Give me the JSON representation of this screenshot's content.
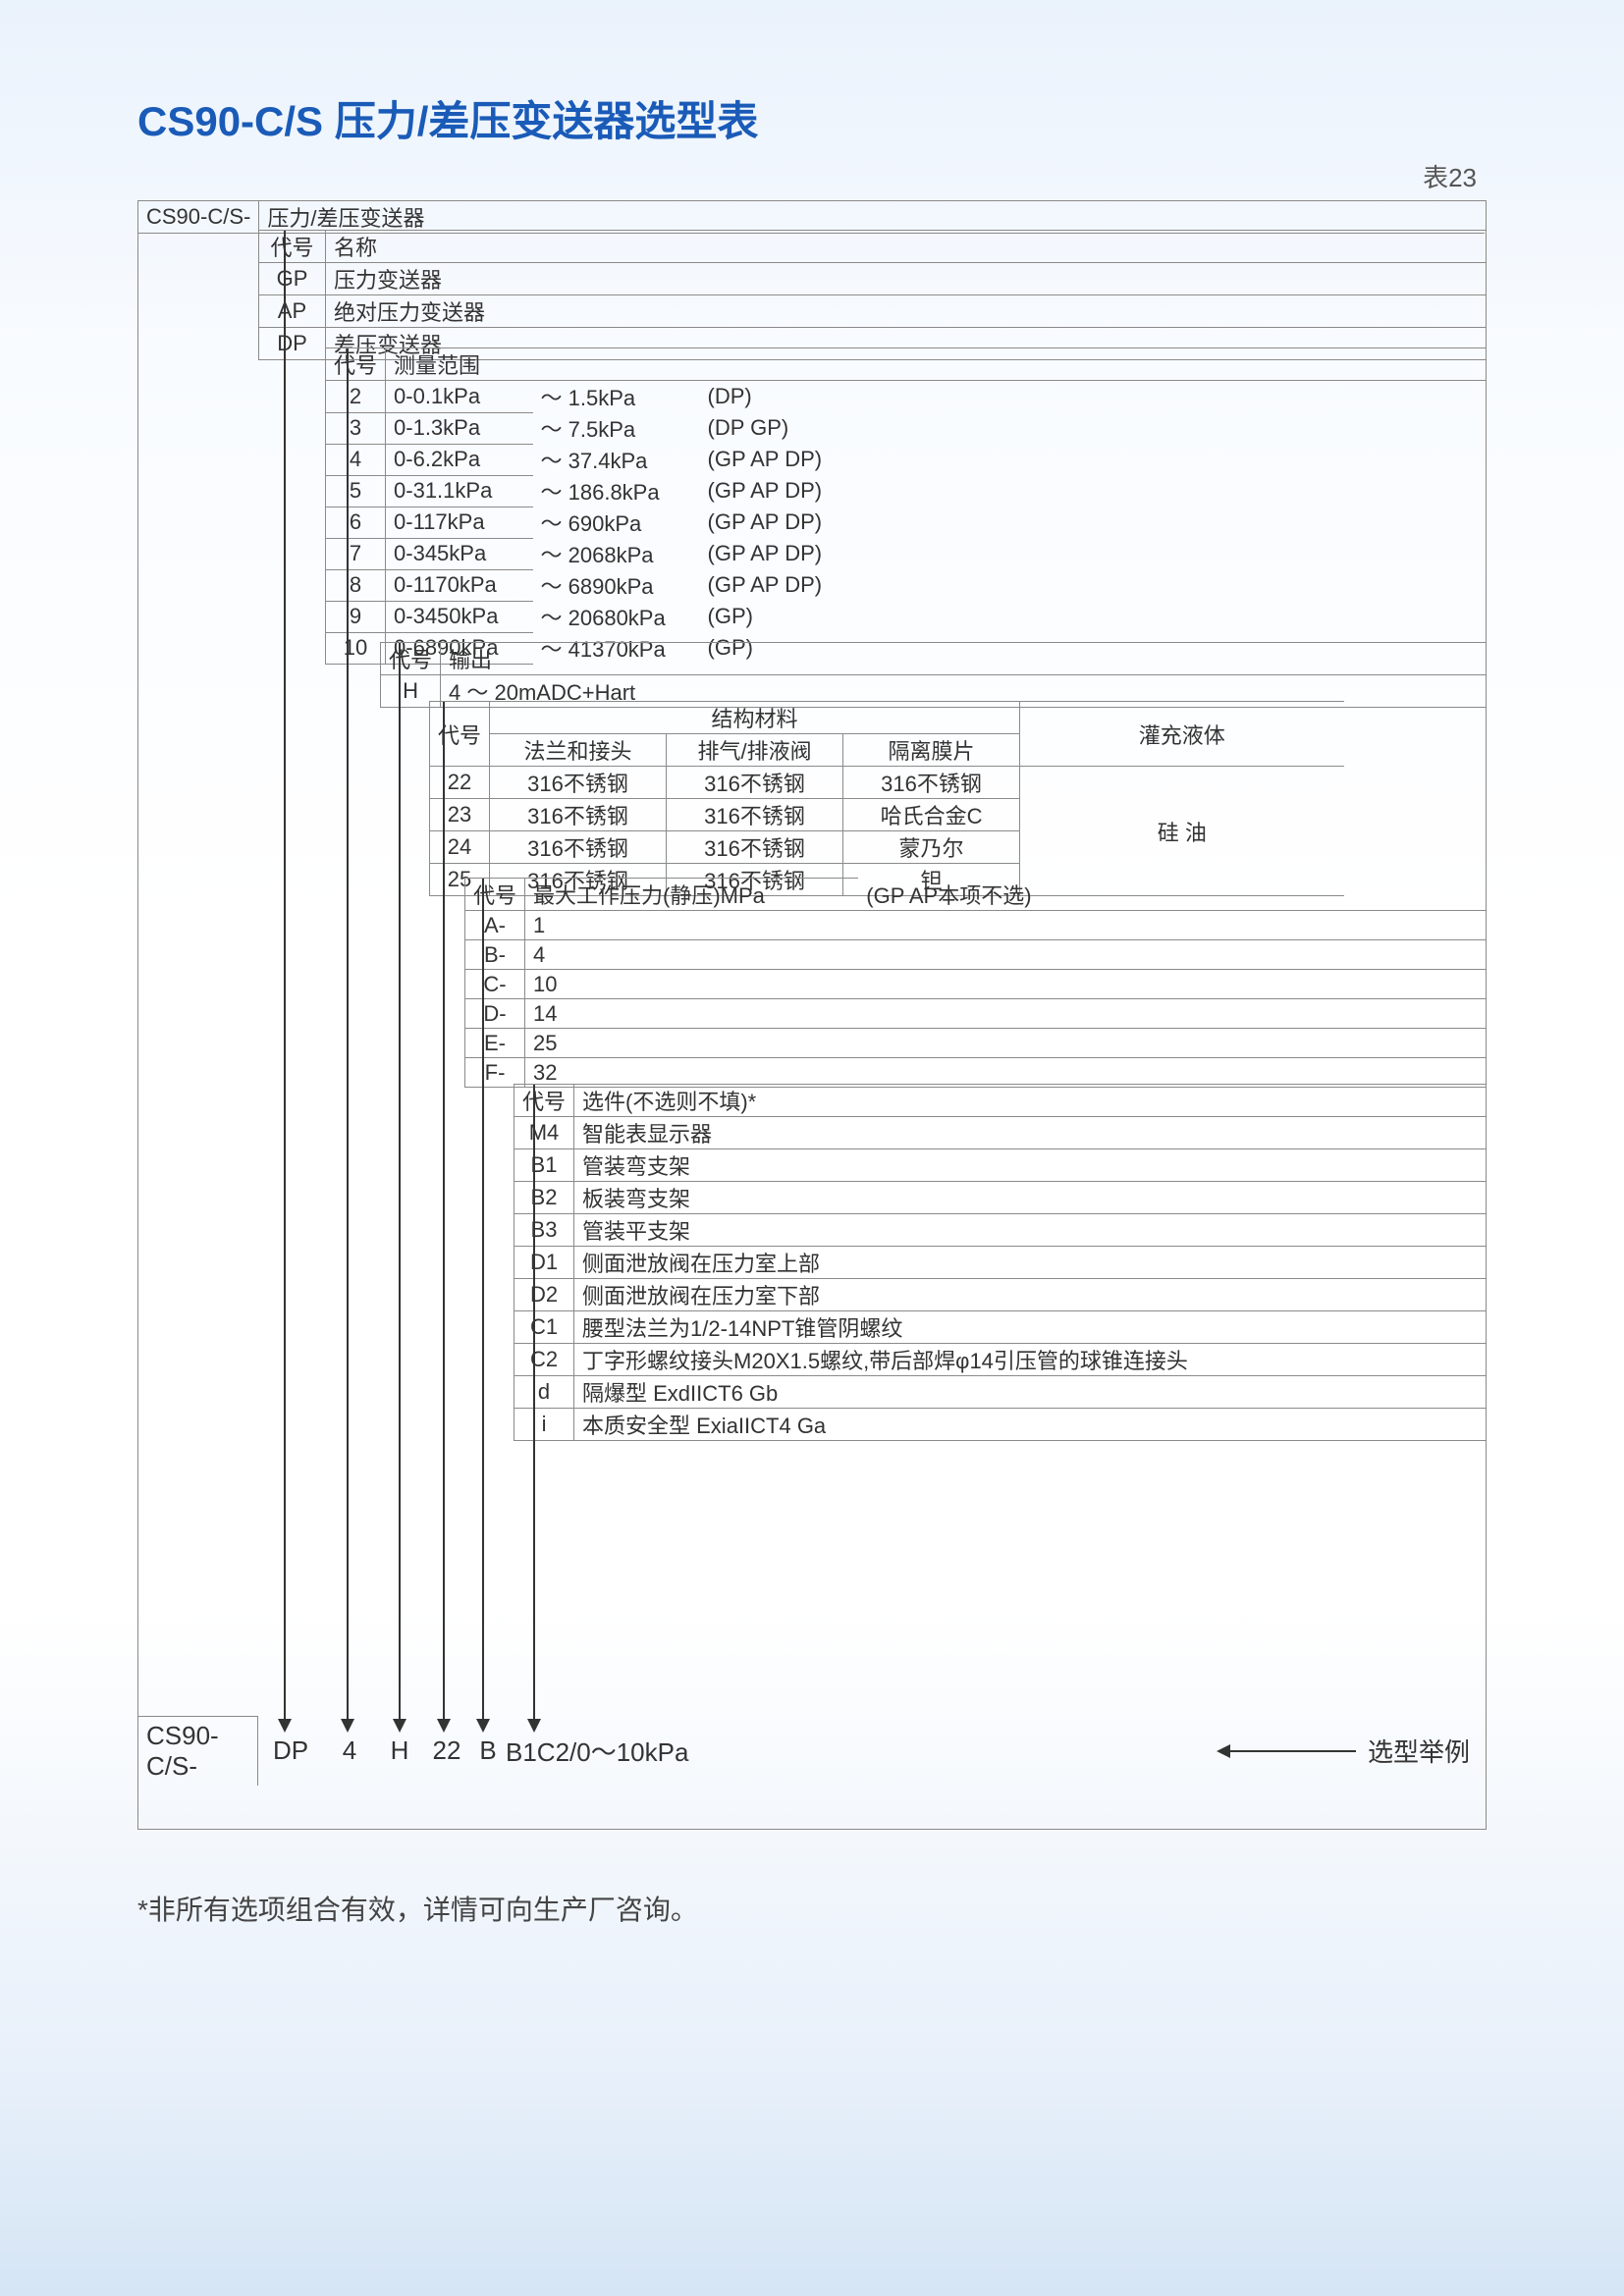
{
  "title": "CS90-C/S 压力/差压变送器选型表",
  "tableLabel": "表23",
  "root": {
    "code": "CS90-C/S-",
    "desc": "压力/差压变送器"
  },
  "typeHeader": {
    "code": "代号",
    "name": "名称"
  },
  "types": [
    {
      "code": "GP",
      "name": "压力变送器"
    },
    {
      "code": "AP",
      "name": "绝对压力变送器"
    },
    {
      "code": "DP",
      "name": "差压变送器"
    }
  ],
  "rangeHeader": {
    "code": "代号",
    "label": "测量范围"
  },
  "ranges": [
    {
      "code": "2",
      "a": "0-0.1kPa",
      "b": "～ 1.5kPa",
      "c": "(DP)"
    },
    {
      "code": "3",
      "a": "0-1.3kPa",
      "b": "～ 7.5kPa",
      "c": "(DP   GP)"
    },
    {
      "code": "4",
      "a": "0-6.2kPa",
      "b": "～ 37.4kPa",
      "c": "(GP   AP   DP)"
    },
    {
      "code": "5",
      "a": "0-31.1kPa",
      "b": "～ 186.8kPa",
      "c": "(GP   AP   DP)"
    },
    {
      "code": "6",
      "a": "0-117kPa",
      "b": "～ 690kPa",
      "c": "(GP   AP   DP)"
    },
    {
      "code": "7",
      "a": "0-345kPa",
      "b": "～ 2068kPa",
      "c": "(GP   AP   DP)"
    },
    {
      "code": "8",
      "a": "0-1170kPa",
      "b": "～ 6890kPa",
      "c": "(GP   AP   DP)"
    },
    {
      "code": "9",
      "a": "0-3450kPa",
      "b": "～ 20680kPa",
      "c": "(GP)"
    },
    {
      "code": "10",
      "a": "0-6890kPa",
      "b": "～ 41370kPa",
      "c": "(GP)"
    }
  ],
  "outputHeader": {
    "code": "代号",
    "label": "输出"
  },
  "output": {
    "code": "H",
    "desc": "4  ～   20mADC+Hart"
  },
  "materialHeader": {
    "code": "代号",
    "struct": "结构材料",
    "c1": "法兰和接头",
    "c2": "排气/排液阀",
    "c3": "隔离膜片",
    "c4": "灌充液体"
  },
  "materials": [
    {
      "code": "22",
      "c1": "316不锈钢",
      "c2": "316不锈钢",
      "c3": "316不锈钢"
    },
    {
      "code": "23",
      "c1": "316不锈钢",
      "c2": "316不锈钢",
      "c3": "哈氏合金C"
    },
    {
      "code": "24",
      "c1": "316不锈钢",
      "c2": "316不锈钢",
      "c3": "蒙乃尔"
    },
    {
      "code": "25",
      "c1": "316不锈钢",
      "c2": "316不锈钢",
      "c3": "钽"
    }
  ],
  "fillFluid": "硅 油",
  "pressureHeader": {
    "code": "代号",
    "label": "最大工作压力(静压)MPa",
    "note": "(GP   AP本项不选)"
  },
  "pressures": [
    {
      "code": "A-",
      "v": "1"
    },
    {
      "code": "B-",
      "v": "4"
    },
    {
      "code": "C-",
      "v": "10"
    },
    {
      "code": "D-",
      "v": "14"
    },
    {
      "code": "E-",
      "v": "25"
    },
    {
      "code": "F-",
      "v": "32"
    }
  ],
  "optionHeader": {
    "code": "代号",
    "label": "选件(不选则不填)*"
  },
  "options": [
    {
      "code": "M4",
      "v": "智能表显示器"
    },
    {
      "code": "B1",
      "v": "管装弯支架"
    },
    {
      "code": "B2",
      "v": "板装弯支架"
    },
    {
      "code": "B3",
      "v": "管装平支架"
    },
    {
      "code": "D1",
      "v": "侧面泄放阀在压力室上部"
    },
    {
      "code": "D2",
      "v": "侧面泄放阀在压力室下部"
    },
    {
      "code": "C1",
      "v": "腰型法兰为1/2-14NPT锥管阴螺纹"
    },
    {
      "code": "C2",
      "v": "丁字形螺纹接头M20X1.5螺纹,带后部焊φ14引压管的球锥连接头"
    },
    {
      "code": "d",
      "v": "隔爆型 ExdIICT6 Gb"
    },
    {
      "code": "i",
      "v": "本质安全型 ExiaIICT4 Ga"
    }
  ],
  "example": {
    "prefix": "CS90-C/S-",
    "parts": [
      "DP",
      "4",
      "H",
      "22",
      "B",
      "B1C2/0～10kPa"
    ],
    "label": "选型举例"
  },
  "footnote": "*非所有选项组合有效，详情可向生产厂咨询。",
  "arrows_x": [
    148,
    212,
    265,
    310,
    350,
    402
  ],
  "arrows_top": [
    30,
    150,
    450,
    510,
    690,
    900
  ]
}
